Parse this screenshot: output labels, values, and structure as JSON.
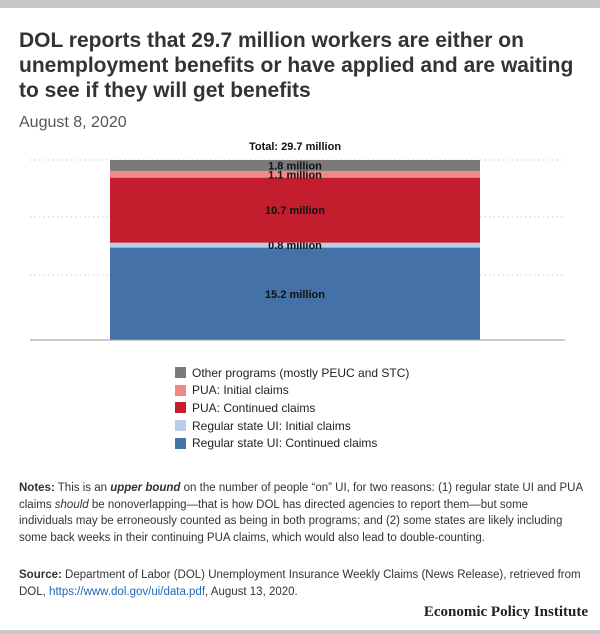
{
  "header": {
    "title": "DOL reports that 29.7 million workers are either on unemployment benefits or have applied and are waiting to see if they will get benefits",
    "date": "August 8, 2020"
  },
  "chart_data": {
    "type": "bar",
    "stacked": true,
    "categories": [
      ""
    ],
    "unit": "million",
    "grid": true,
    "total_label": "Total: 29.7 million",
    "series": [
      {
        "name": "Regular state UI: Continued claims",
        "values": [
          15.2
        ],
        "label": "15.2 million",
        "color": "#4472a8"
      },
      {
        "name": "Regular state UI: Initial claims",
        "values": [
          0.8
        ],
        "label": "0.8 million",
        "color": "#b8cfe6"
      },
      {
        "name": "PUA: Continued claims",
        "values": [
          10.7
        ],
        "label": "10.7 million",
        "color": "#c41e2e"
      },
      {
        "name": "PUA: Initial claims",
        "values": [
          1.1
        ],
        "label": "1.1 million",
        "color": "#f08a8a"
      },
      {
        "name": "Other programs (mostly PEUC and STC)",
        "values": [
          1.8
        ],
        "label": "1.8 million",
        "color": "#7a7a7a"
      }
    ],
    "legend_order": [
      4,
      3,
      2,
      1,
      0
    ],
    "legend_position": "bottom"
  },
  "notes": {
    "label": "Notes:",
    "part1": " This is an ",
    "emphasis1": "upper bound",
    "part2": " on the number of people “on” UI, for two reasons: (1) regular state UI and PUA claims ",
    "emphasis2": "should",
    "part3": " be nonoverlapping—that is how DOL has directed agencies to report them—but some individuals may be erroneously counted as being in both programs; and (2) some states are likely including some back weeks in their continuing PUA claims, which would also lead to double-counting."
  },
  "source": {
    "label": "Source:",
    "text": " Department of Labor (DOL) Unemployment Insurance Weekly Claims (News Release), retrieved from DOL, ",
    "link_text": "https://www.dol.gov/ui/data.pdf",
    "suffix": ", August 13, 2020."
  },
  "brand": "Economic Policy Institute"
}
